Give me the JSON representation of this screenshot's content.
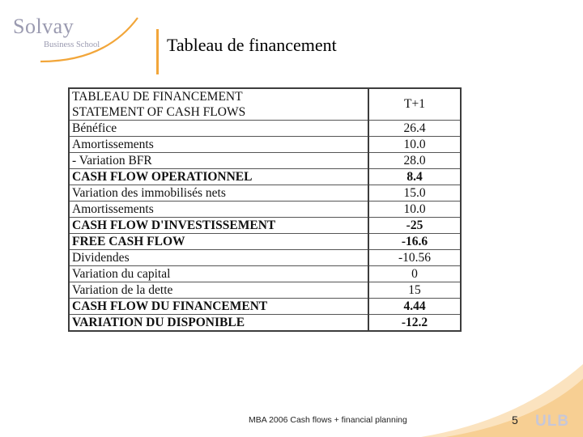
{
  "logo": {
    "name": "Solvay",
    "sub": "Business School"
  },
  "title": "Tableau de financement",
  "table": {
    "header": [
      "TABLEAU DE FINANCEMENT",
      "STATEMENT OF CASH FLOWS"
    ],
    "col_header": "T+1",
    "rows": [
      {
        "label": "Bénéfice",
        "value": "26.4"
      },
      {
        "label": "Amortissements",
        "value": "10.0"
      },
      {
        "label": "- Variation BFR",
        "value": "28.0"
      },
      {
        "label": "CASH FLOW OPERATIONNEL",
        "value": "8.4"
      },
      {
        "label": "Variation des immobilisés nets",
        "value": "15.0"
      },
      {
        "label": "Amortissements",
        "value": "10.0"
      },
      {
        "label": "CASH FLOW D'INVESTISSEMENT",
        "value": "-25"
      },
      {
        "label": "FREE CASH FLOW",
        "value": "-16.6"
      },
      {
        "label": "Dividendes",
        "value": "-10.56"
      },
      {
        "label": "Variation du capital",
        "value": "0"
      },
      {
        "label": "Variation de la dette",
        "value": "15"
      },
      {
        "label": "CASH FLOW DU FINANCEMENT",
        "value": "4.44"
      },
      {
        "label": "VARIATION DU DISPONIBLE",
        "value": "-12.2"
      }
    ]
  },
  "footer": {
    "text": "MBA 2006 Cash flows + financial planning",
    "page": "5",
    "brand": "ULB"
  },
  "colors": {
    "accent": "#f2a63a",
    "logo_gray": "#9a9ab0"
  }
}
